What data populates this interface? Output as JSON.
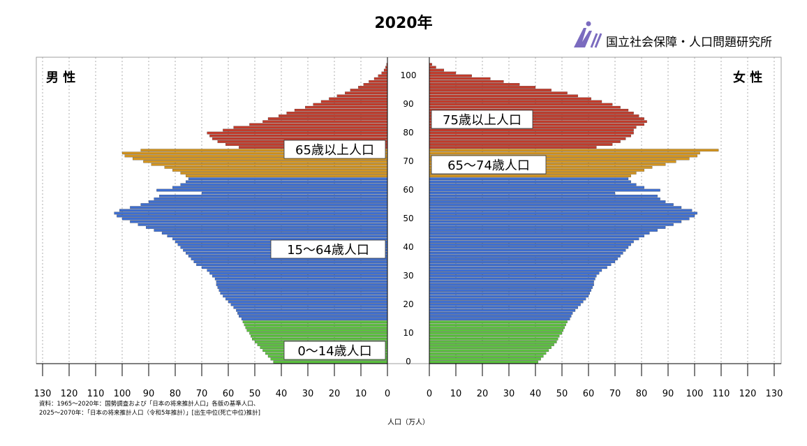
{
  "chart_data": {
    "type": "population-pyramid",
    "title": "2020年",
    "organization": "国立社会保障・人口問題研究所",
    "left_label": "男 性",
    "right_label": "女 性",
    "xlabel": "人口（万人）",
    "xlim": [
      0,
      130
    ],
    "x_ticks_left": [
      "130",
      "120",
      "110",
      "100",
      "90",
      "80",
      "70",
      "60",
      "50",
      "40",
      "30",
      "20",
      "10",
      "0"
    ],
    "x_ticks_right": [
      "0",
      "10",
      "20",
      "30",
      "40",
      "50",
      "60",
      "70",
      "80",
      "90",
      "100",
      "110",
      "120",
      "130"
    ],
    "age_ticks": [
      "100",
      "90",
      "80",
      "70",
      "60",
      "50",
      "40",
      "30",
      "20",
      "10",
      "0"
    ],
    "source_note_1": "資料：1965～2020年：国勢調査および「日本の将来推計人口」各版の基準人口、",
    "source_note_2": "2025～2070年：「日本の将来推計人口（令和5年推計）」[出生中位(死亡中位)推計]",
    "group_labels_left": [
      "65歳以上人口",
      "15～64歳人口",
      "0～14歳人口"
    ],
    "group_labels_right": [
      "75歳以上人口",
      "65～74歳人口"
    ],
    "groups": [
      {
        "name": "0～14歳",
        "ages": [
          0,
          14
        ],
        "color": "#5cc13f"
      },
      {
        "name": "15～64歳",
        "ages": [
          15,
          64
        ],
        "color": "#3f6fd0"
      },
      {
        "name": "65～74歳",
        "ages": [
          65,
          74
        ],
        "color": "#d4951f"
      },
      {
        "name": "75歳以上",
        "ages": [
          75,
          104
        ],
        "color": "#c23b2b"
      }
    ],
    "ages": [
      0,
      1,
      2,
      3,
      4,
      5,
      6,
      7,
      8,
      9,
      10,
      11,
      12,
      13,
      14,
      15,
      16,
      17,
      18,
      19,
      20,
      21,
      22,
      23,
      24,
      25,
      26,
      27,
      28,
      29,
      30,
      31,
      32,
      33,
      34,
      35,
      36,
      37,
      38,
      39,
      40,
      41,
      42,
      43,
      44,
      45,
      46,
      47,
      48,
      49,
      50,
      51,
      52,
      53,
      54,
      55,
      56,
      57,
      58,
      59,
      60,
      61,
      62,
      63,
      64,
      65,
      66,
      67,
      68,
      69,
      70,
      71,
      72,
      73,
      74,
      75,
      76,
      77,
      78,
      79,
      80,
      81,
      82,
      83,
      84,
      85,
      86,
      87,
      88,
      89,
      90,
      91,
      92,
      93,
      94,
      95,
      96,
      97,
      98,
      99,
      100,
      101,
      102,
      103,
      104
    ],
    "series": [
      {
        "name": "男 性",
        "values": [
          43,
          44,
          45,
          46,
          47,
          48,
          49,
          50,
          51,
          51.5,
          52,
          53,
          53.5,
          54,
          54.5,
          55,
          56,
          56.5,
          57,
          58,
          59,
          60,
          61,
          62,
          63,
          63.5,
          64,
          64.5,
          64.5,
          65,
          66,
          67,
          68,
          70,
          72,
          73,
          74,
          75,
          76,
          77,
          78,
          79,
          80,
          81,
          83,
          85,
          88,
          91,
          94,
          97,
          100,
          102,
          103,
          101,
          97,
          93,
          90,
          88,
          86,
          70,
          87,
          81,
          78,
          76,
          75,
          76,
          78,
          81,
          84,
          89,
          92,
          96,
          99,
          100,
          93,
          56,
          61,
          64,
          66,
          67,
          68,
          62,
          58,
          52,
          47,
          45,
          41,
          38,
          35,
          31,
          28,
          25,
          22,
          19,
          16,
          14,
          11,
          9,
          7,
          5,
          3.5,
          2.2,
          1.3,
          0.7,
          0.3
        ]
      },
      {
        "name": "女 性",
        "values": [
          41,
          42,
          43,
          44,
          45,
          46,
          47,
          48,
          48.5,
          49,
          50,
          50.5,
          51,
          51.5,
          52,
          53,
          53.5,
          54,
          55,
          56,
          57,
          58,
          59,
          60,
          60.5,
          61,
          61.5,
          62,
          62,
          62.5,
          63,
          64,
          65,
          67,
          68.5,
          70,
          71,
          72,
          73,
          74,
          75,
          76,
          77,
          79,
          81,
          83,
          86,
          89,
          92,
          95,
          98,
          100,
          101,
          99,
          95,
          92,
          89,
          87,
          86,
          70,
          87,
          81,
          78,
          76,
          75,
          76,
          78,
          81,
          84,
          89,
          93,
          98,
          101,
          102,
          109,
          63,
          69,
          72,
          74,
          76,
          77,
          77,
          78,
          81,
          82,
          81,
          79,
          77,
          75,
          72,
          69,
          65,
          61,
          56,
          52,
          46,
          40,
          34,
          28,
          23,
          16,
          10,
          5.5,
          2.5,
          1
        ]
      }
    ]
  }
}
